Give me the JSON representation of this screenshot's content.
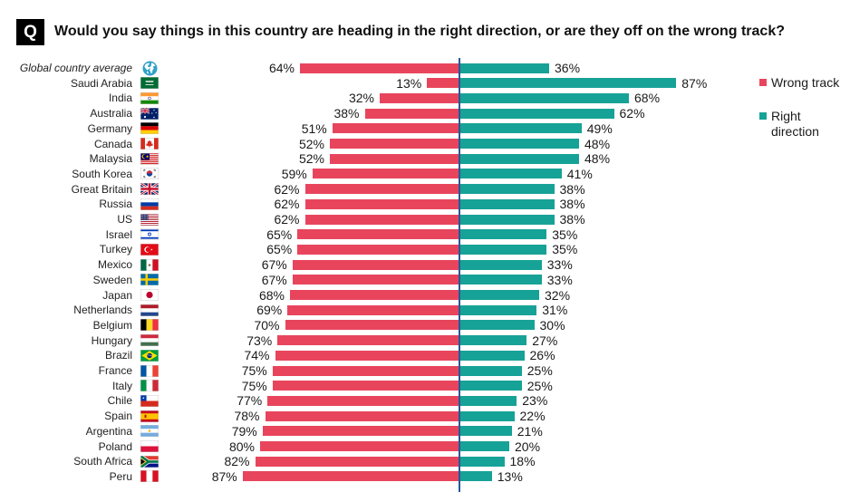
{
  "header": {
    "badge": "Q"
  },
  "chart_data": {
    "type": "bar",
    "title": "Would you say things in this country are heading in the right direction, or are they off on the wrong track?",
    "categories": [
      "Global country average",
      "Saudi Arabia",
      "India",
      "Australia",
      "Germany",
      "Canada",
      "Malaysia",
      "South Korea",
      "Great Britain",
      "Russia",
      "US",
      "Israel",
      "Turkey",
      "Mexico",
      "Sweden",
      "Japan",
      "Netherlands",
      "Belgium",
      "Hungary",
      "Brazil",
      "France",
      "Italy",
      "Chile",
      "Spain",
      "Argentina",
      "Poland",
      "South Africa",
      "Peru"
    ],
    "category_icons": [
      "globe-icon",
      "saudi-arabia-flag-icon",
      "india-flag-icon",
      "australia-flag-icon",
      "germany-flag-icon",
      "canada-flag-icon",
      "malaysia-flag-icon",
      "south-korea-flag-icon",
      "great-britain-flag-icon",
      "russia-flag-icon",
      "us-flag-icon",
      "israel-flag-icon",
      "turkey-flag-icon",
      "mexico-flag-icon",
      "sweden-flag-icon",
      "japan-flag-icon",
      "netherlands-flag-icon",
      "belgium-flag-icon",
      "hungary-flag-icon",
      "brazil-flag-icon",
      "france-flag-icon",
      "italy-flag-icon",
      "chile-flag-icon",
      "spain-flag-icon",
      "argentina-flag-icon",
      "poland-flag-icon",
      "south-africa-flag-icon",
      "peru-flag-icon"
    ],
    "series": [
      {
        "name": "Wrong track",
        "color": "#e8455d",
        "values": [
          64,
          13,
          32,
          38,
          51,
          52,
          52,
          59,
          62,
          62,
          62,
          65,
          65,
          67,
          67,
          68,
          69,
          70,
          73,
          74,
          75,
          75,
          77,
          78,
          79,
          80,
          82,
          87
        ]
      },
      {
        "name": "Right direction",
        "color": "#17a297",
        "values": [
          36,
          87,
          68,
          62,
          49,
          48,
          48,
          41,
          38,
          38,
          38,
          35,
          35,
          33,
          33,
          32,
          31,
          30,
          27,
          26,
          25,
          25,
          23,
          22,
          21,
          20,
          18,
          13
        ]
      }
    ],
    "value_suffix": "%",
    "xlim": [
      0,
      100
    ],
    "grid": false,
    "legend_position": "right",
    "axis_color": "#2b5797"
  }
}
